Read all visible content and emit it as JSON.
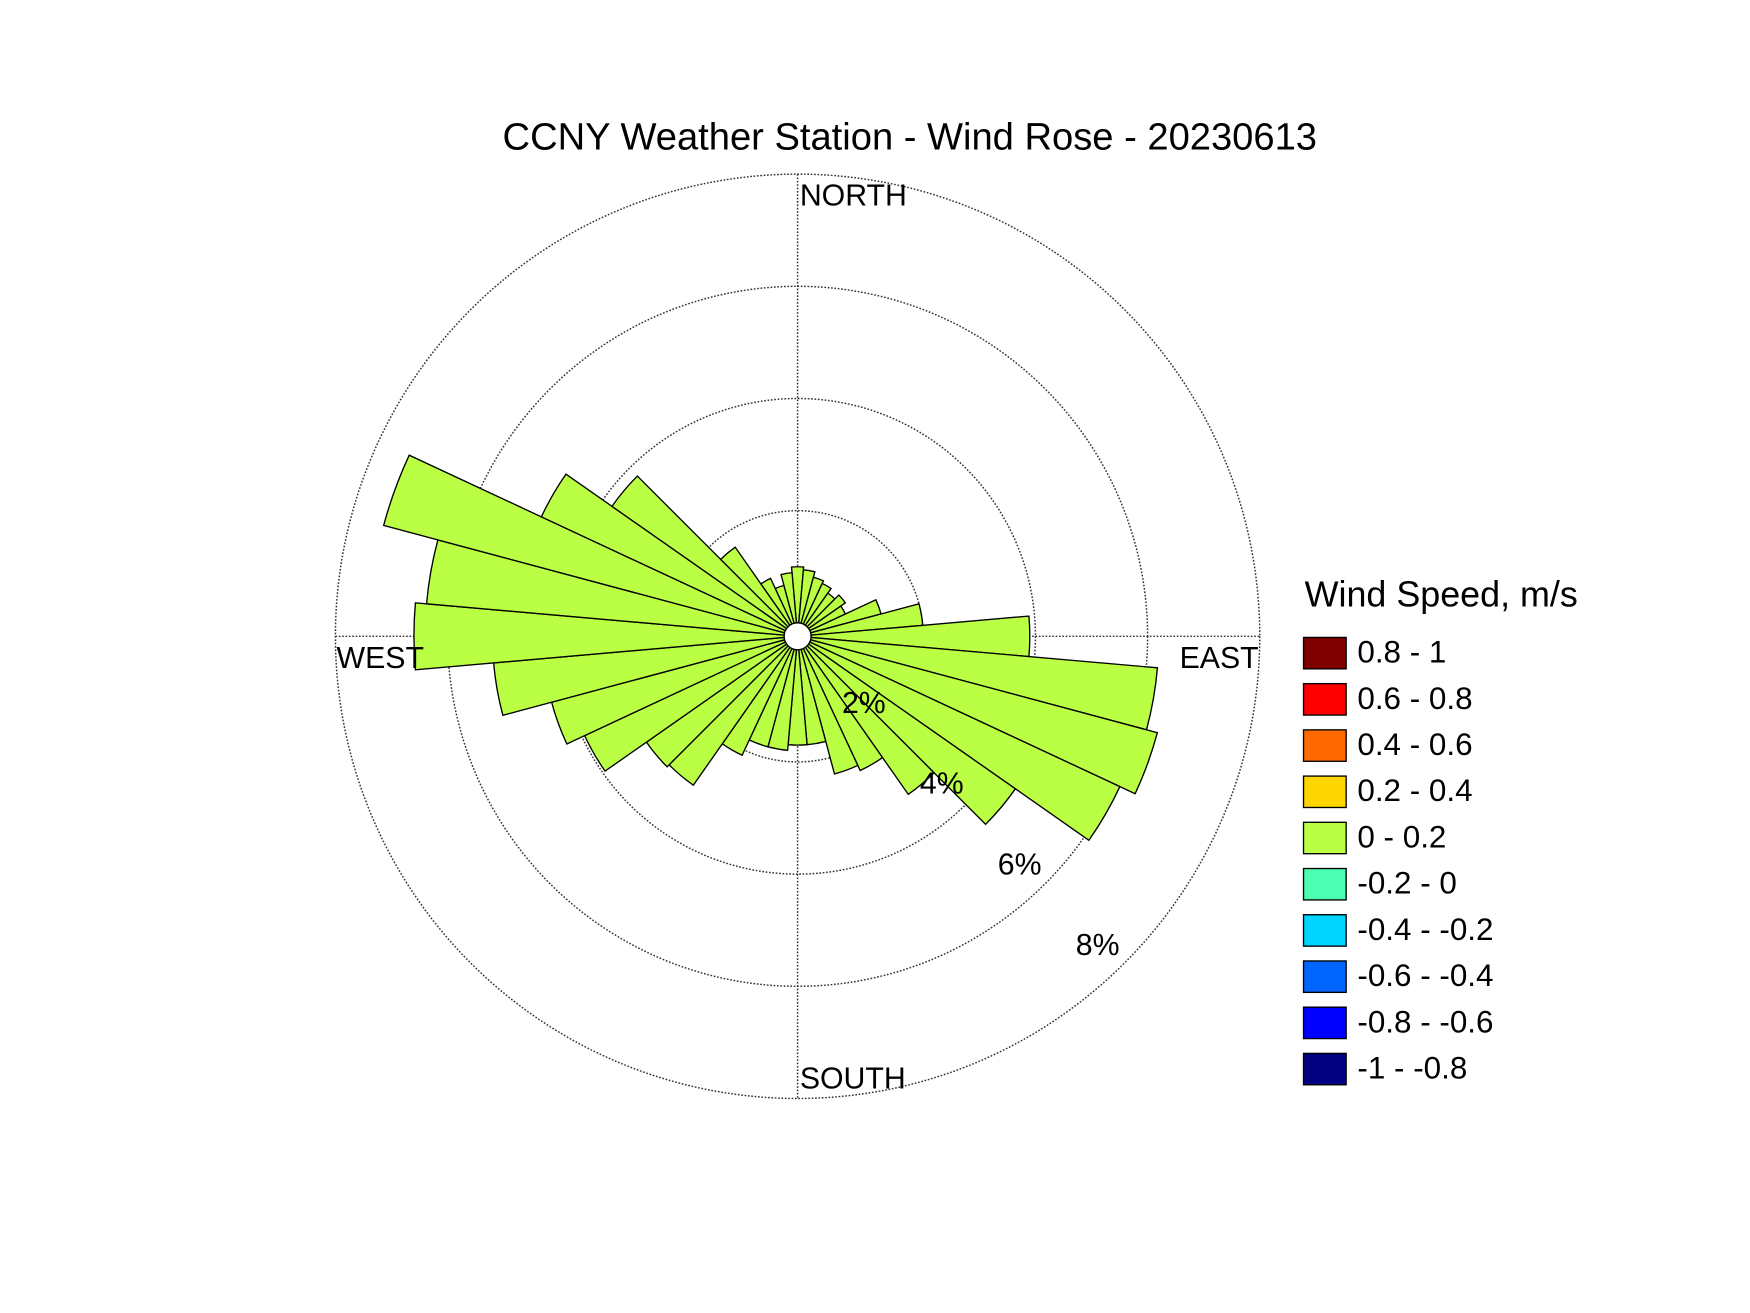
{
  "chart_data": {
    "type": "windrose",
    "title": "CCNY Weather Station - Wind Rose - 20230613",
    "compass_labels": {
      "north": "NORTH",
      "east": "EAST",
      "south": "SOUTH",
      "west": "WEST"
    },
    "theta": [
      0,
      10,
      20,
      30,
      40,
      50,
      60,
      70,
      80,
      90,
      100,
      110,
      120,
      130,
      140,
      150,
      160,
      170,
      180,
      190,
      200,
      210,
      220,
      230,
      240,
      250,
      260,
      270,
      280,
      290,
      300,
      310,
      320,
      330,
      340,
      350
    ],
    "rlim": [
      0,
      8
    ],
    "rticks": [
      {
        "value": 2,
        "label": "2%"
      },
      {
        "value": 4,
        "label": "4%"
      },
      {
        "value": 6,
        "label": "6%"
      },
      {
        "value": 8,
        "label": "8%"
      }
    ],
    "grid": true,
    "legend_title": "Wind Speed, m/s",
    "series": [
      {
        "name": "0.8 - 1",
        "color": "#800000"
      },
      {
        "name": "0.6 - 0.8",
        "color": "#ff0000"
      },
      {
        "name": "0.4 - 0.6",
        "color": "#ff6a00"
      },
      {
        "name": "0.2 - 0.4",
        "color": "#ffd500"
      },
      {
        "name": "0 - 0.2",
        "color": "#bbff44",
        "values": [
          1.0,
          0.95,
          0.85,
          0.8,
          0.7,
          0.8,
          0.7,
          1.3,
          2.0,
          3.9,
          6.2,
          6.4,
          6.1,
          4.5,
          3.2,
          2.4,
          2.3,
          1.7,
          1.7,
          1.8,
          1.8,
          2.1,
          3.0,
          3.05,
          3.95,
          4.3,
          5.2,
          6.6,
          6.4,
          7.4,
          4.8,
          3.8,
          1.7,
          0.9,
          0.7,
          0.9
        ]
      },
      {
        "name": "-0.2 - 0",
        "color": "#4dffb3"
      },
      {
        "name": "-0.4 - -0.2",
        "color": "#00d4ff"
      },
      {
        "name": "-0.6 - -0.4",
        "color": "#0066ff"
      },
      {
        "name": "-0.8 - -0.6",
        "color": "#0000ff"
      },
      {
        "name": "-1 - -0.8",
        "color": "#000080"
      }
    ]
  }
}
